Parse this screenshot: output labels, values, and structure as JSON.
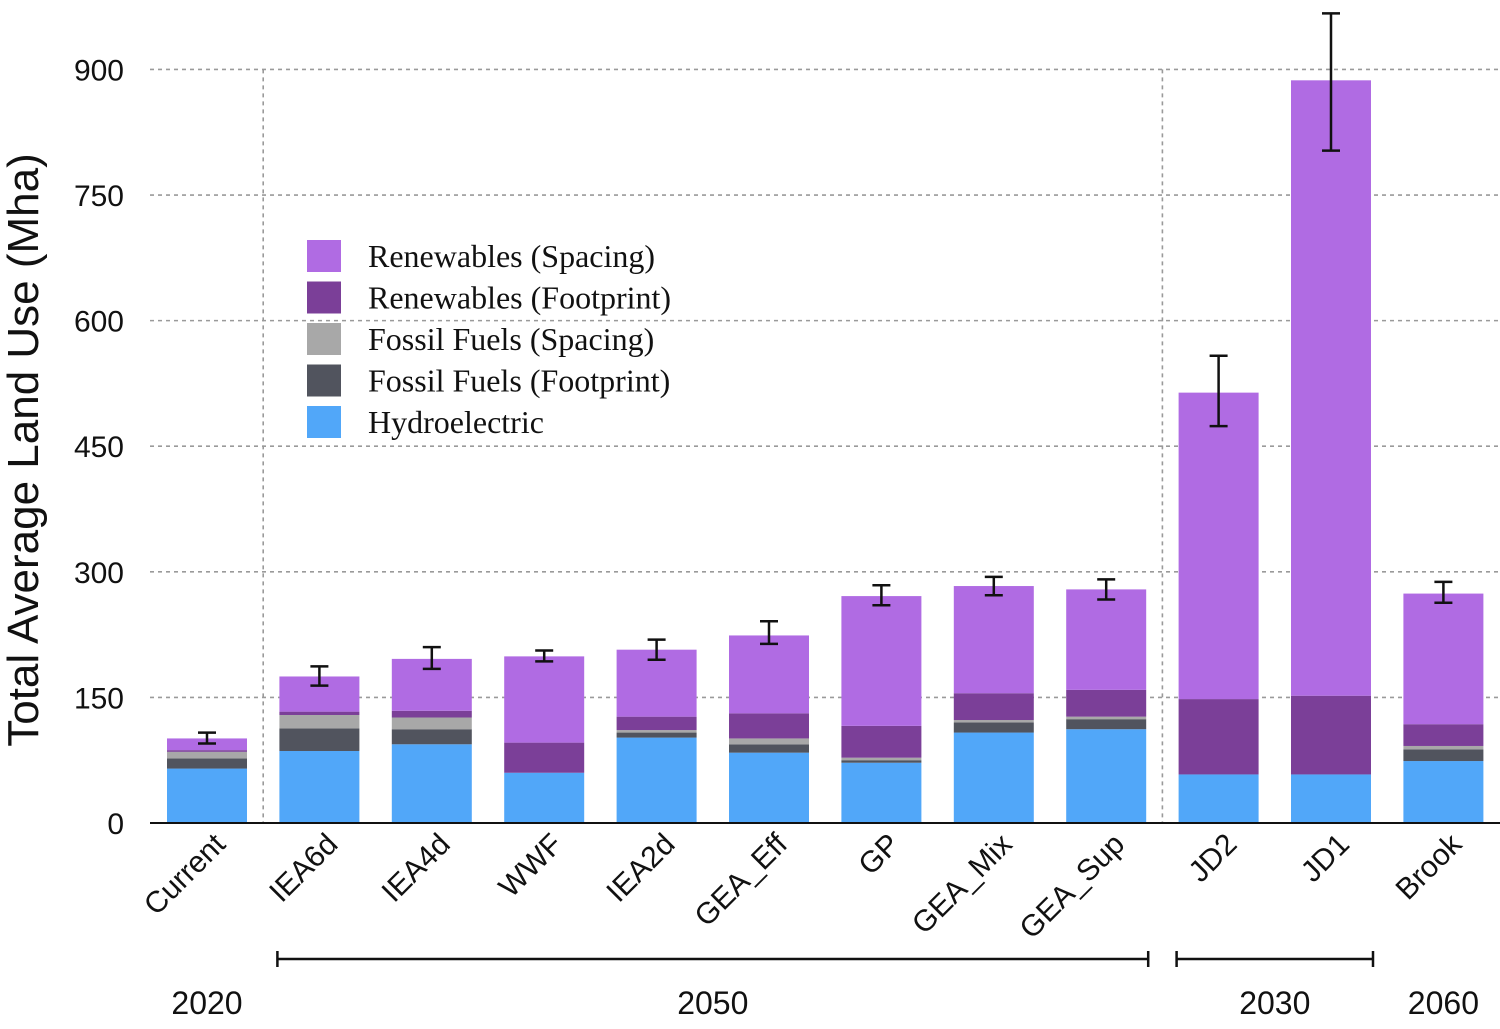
{
  "chart_data": {
    "type": "bar",
    "stacked": true,
    "ylabel": "Total Average Land Use (Mha)",
    "ylim": [
      0,
      930
    ],
    "yticks": [
      0,
      150,
      300,
      450,
      600,
      750,
      900
    ],
    "grid": "horizontal dashed",
    "legend_position": "upper-left",
    "categories": [
      "Current",
      "IEA6d",
      "IEA4d",
      "WWF",
      "IEA2d",
      "GEA_Eff",
      "GP",
      "GEA_Mix",
      "GEA_Sup",
      "JD2",
      "JD1",
      "Brook"
    ],
    "series": [
      {
        "name": "Hydroelectric",
        "color": "#51a7f9",
        "values": [
          65,
          86,
          94,
          60,
          102,
          84,
          72,
          108,
          112,
          58,
          58,
          74
        ]
      },
      {
        "name": "Fossil Fuels (Footprint)",
        "color": "#51545e",
        "values": [
          12,
          27,
          18,
          0,
          6,
          10,
          3,
          12,
          12,
          0,
          0,
          14
        ]
      },
      {
        "name": "Fossil Fuels (Spacing)",
        "color": "#a8a8a8",
        "values": [
          8,
          16,
          14,
          0,
          3,
          7,
          3,
          3,
          3,
          0,
          0,
          4
        ]
      },
      {
        "name": "Renewables (Footprint)",
        "color": "#7b3f98",
        "values": [
          2,
          4,
          8,
          36,
          16,
          30,
          38,
          32,
          32,
          90,
          94,
          26
        ]
      },
      {
        "name": "Renewables (Spacing)",
        "color": "#b06be3",
        "values": [
          14,
          42,
          62,
          103,
          80,
          93,
          155,
          128,
          120,
          366,
          735,
          156
        ]
      }
    ],
    "totals": [
      101,
      175,
      196,
      199,
      207,
      224,
      271,
      283,
      279,
      514,
      887,
      274
    ],
    "error_bars": [
      [
        95,
        108
      ],
      [
        164,
        187
      ],
      [
        184,
        210
      ],
      [
        193,
        206
      ],
      [
        195,
        219
      ],
      [
        214,
        241
      ],
      [
        260,
        284
      ],
      [
        272,
        294
      ],
      [
        267,
        291
      ],
      [
        474,
        558
      ],
      [
        803,
        967
      ],
      [
        263,
        288
      ]
    ],
    "legend_order": [
      "Renewables (Spacing)",
      "Renewables (Footprint)",
      "Fossil Fuels (Spacing)",
      "Fossil Fuels (Footprint)",
      "Hydroelectric"
    ],
    "groups": [
      {
        "label": "2020",
        "from": 0,
        "to": 0,
        "bracket": false
      },
      {
        "label": "2050",
        "from": 1,
        "to": 8,
        "bracket": true
      },
      {
        "label": "2030",
        "from": 9,
        "to": 10,
        "bracket": true
      },
      {
        "label": "2060",
        "from": 11,
        "to": 11,
        "bracket": false
      }
    ],
    "separators_after": [
      0,
      8
    ]
  }
}
